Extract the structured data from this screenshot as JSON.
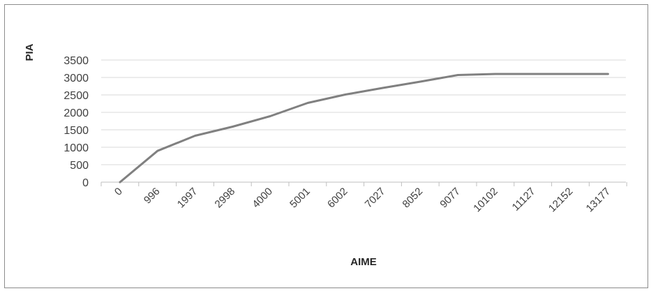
{
  "chart_data": {
    "type": "line",
    "title": "",
    "xlabel": "AIME",
    "ylabel": "PIA",
    "x_tick_labels": [
      "0",
      "996",
      "1997",
      "2998",
      "4000",
      "5001",
      "6002",
      "7027",
      "8052",
      "9077",
      "10102",
      "11127",
      "12152",
      "13177"
    ],
    "yticks": [
      0,
      500,
      1000,
      1500,
      2000,
      2500,
      3000,
      3500
    ],
    "ylim": [
      0,
      3500
    ],
    "gridlines": "horizontal",
    "legend": "none",
    "series": [
      {
        "color": "#808080",
        "x": [
          0,
          996,
          1997,
          2998,
          4000,
          5001,
          6002,
          7027,
          8052,
          9077,
          10102,
          11127,
          12152,
          13177
        ],
        "values": [
          0,
          896,
          1330,
          1590,
          1890,
          2270,
          2510,
          2700,
          2880,
          3070,
          3100,
          3100,
          3100,
          3100
        ]
      }
    ],
    "colors": {
      "grid": "#d9d9d9",
      "axis": "#bfbfbf",
      "text": "#404040",
      "border": "#8c8c8c"
    }
  }
}
